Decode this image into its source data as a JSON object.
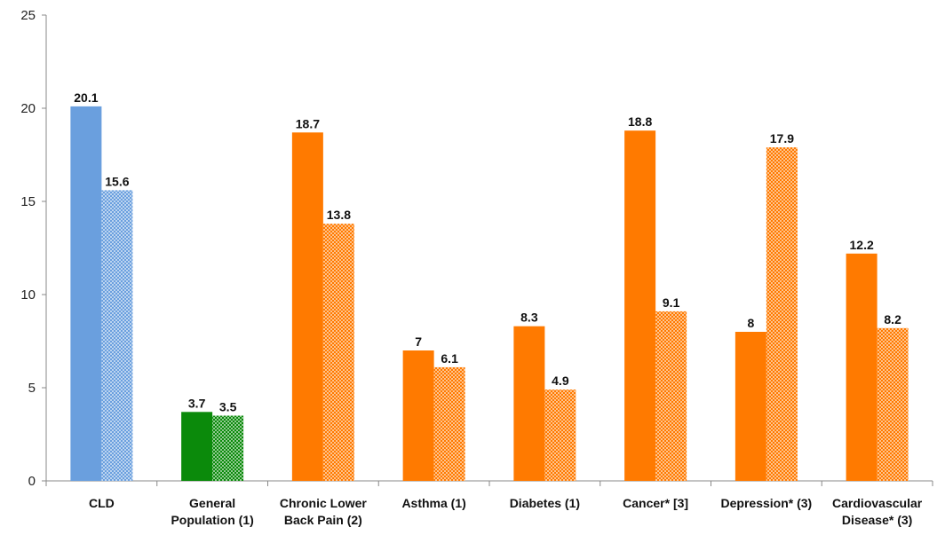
{
  "chart_data": {
    "type": "bar",
    "categories": [
      [
        "CLD"
      ],
      [
        "General",
        "Population (1)"
      ],
      [
        "Chronic Lower",
        "Back Pain (2)"
      ],
      [
        "Asthma (1)"
      ],
      [
        "Diabetes (1)"
      ],
      [
        "Cancer* [3]"
      ],
      [
        "Depression* (3)"
      ],
      [
        "Cardiovascular",
        "Disease* (3)"
      ]
    ],
    "series": [
      {
        "values": [
          20.1,
          3.7,
          18.7,
          7,
          8.3,
          18.8,
          8,
          12.2
        ]
      },
      {
        "values": [
          15.6,
          3.5,
          13.8,
          6.1,
          4.9,
          9.1,
          17.9,
          8.2
        ]
      }
    ],
    "value_labels": [
      [
        "20.1",
        "3.7",
        "18.7",
        "7",
        "8.3",
        "18.8",
        "8",
        "12.2"
      ],
      [
        "15.6",
        "3.5",
        "13.8",
        "6.1",
        "4.9",
        "9.1",
        "17.9",
        "8.2"
      ]
    ],
    "category_colors": [
      "#6a9fde",
      "#0b8a0b",
      "#ff7a00",
      "#ff7a00",
      "#ff7a00",
      "#ff7a00",
      "#ff7a00",
      "#ff7a00"
    ],
    "second_series_style": "checkered pattern of category color",
    "ylim": [
      0,
      25
    ],
    "yticks": [
      0,
      5,
      10,
      15,
      20,
      25
    ],
    "grid": false,
    "legend": "none",
    "title": "",
    "xlabel": "",
    "ylabel": ""
  }
}
